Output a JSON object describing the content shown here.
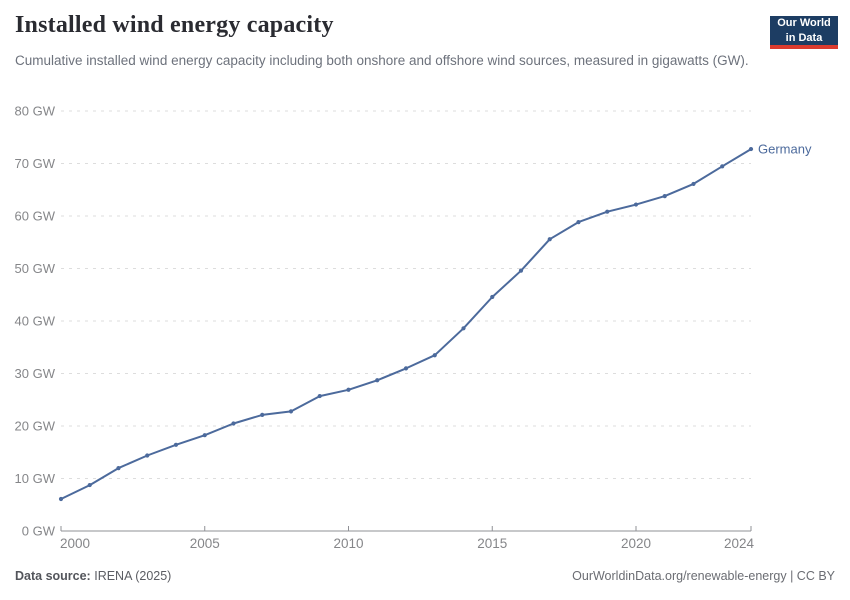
{
  "header": {
    "title": "Installed wind energy capacity",
    "subtitle": "Cumulative installed wind energy capacity including both onshore and offshore wind sources, measured in gigawatts (GW).",
    "logo_line1": "Our World",
    "logo_line2": "in Data"
  },
  "chart_data": {
    "type": "line",
    "title": "Installed wind energy capacity",
    "ylabel": "",
    "xlabel": "",
    "unit_suffix": " GW",
    "xlim": [
      2000,
      2024
    ],
    "ylim": [
      0,
      80
    ],
    "yticks": [
      0,
      10,
      20,
      30,
      40,
      50,
      60,
      70,
      80
    ],
    "xticks": [
      2000,
      2005,
      2010,
      2015,
      2020,
      2024
    ],
    "grid": "horizontal-dashed",
    "legend_position": "end-of-line",
    "series": [
      {
        "name": "Germany",
        "color": "#4c6a9c",
        "x": [
          2000,
          2001,
          2002,
          2003,
          2004,
          2005,
          2006,
          2007,
          2008,
          2009,
          2010,
          2011,
          2012,
          2013,
          2014,
          2015,
          2016,
          2017,
          2018,
          2019,
          2020,
          2021,
          2022,
          2023,
          2024
        ],
        "values": [
          6.1,
          8.75,
          11.98,
          14.38,
          16.42,
          18.25,
          20.47,
          22.12,
          22.79,
          25.7,
          26.9,
          28.71,
          30.98,
          33.48,
          38.61,
          44.58,
          49.59,
          55.58,
          58.84,
          60.82,
          62.18,
          63.79,
          66.11,
          69.46,
          72.75
        ]
      }
    ]
  },
  "footer": {
    "source_label": "Data source:",
    "source_value": "IRENA (2025)",
    "attribution": "OurWorldinData.org/renewable-energy | CC BY"
  },
  "colors": {
    "accent_line": "#4c6a9c",
    "logo_bg": "#1d3d63",
    "logo_red": "#dc3b2e",
    "grid": "#dddddd",
    "axis": "#8f9096",
    "tick_label": "#858689"
  }
}
